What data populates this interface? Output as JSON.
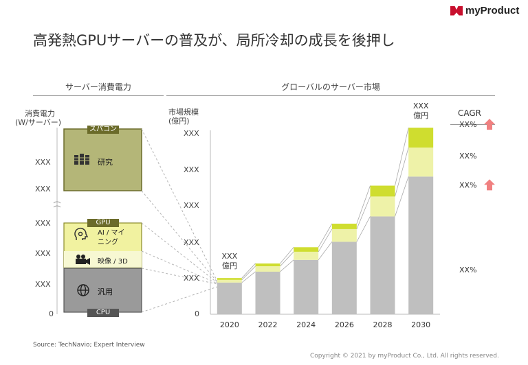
{
  "brand": {
    "name": "myProduct"
  },
  "title": "高発熱GPUサーバーの普及が、局所冷却の成長を後押し",
  "left_panel": {
    "title": "サーバー消費電力",
    "ylabel_line1": "消費電力",
    "ylabel_line2": "(W/サーバー)",
    "ticks": [
      "XXX",
      "XXX",
      "XXX",
      "XXX",
      "XXX",
      "0"
    ],
    "groups": [
      {
        "tag": "スパコン",
        "items": [
          {
            "icon": "server-rack-icon",
            "label": "研究"
          }
        ],
        "color": "#b4b678"
      },
      {
        "tag": "GPU",
        "items": [
          {
            "icon": "ai-head-icon",
            "label": "AI / マイ\nニング"
          },
          {
            "icon": "video-camera-icon",
            "label": "映像 / 3D"
          }
        ],
        "color": "#f1f2a0"
      },
      {
        "tag": "CPU",
        "items": [
          {
            "icon": "globe-icon",
            "label": "汎用"
          }
        ],
        "color": "#9a9a9a"
      }
    ]
  },
  "chart_data": {
    "type": "bar",
    "stacked": true,
    "title": "グローバルのサーバー市場",
    "ylabel": "市場規模\n(億円)",
    "categories": [
      "2020",
      "2022",
      "2024",
      "2026",
      "2028",
      "2030"
    ],
    "y_tick_labels": [
      "XXX",
      "XXX",
      "XXX",
      "XXX",
      "XXX",
      "0"
    ],
    "series": [
      {
        "values": [
          35,
          47,
          60,
          80,
          108,
          152
        ],
        "color": "#bfbfbf"
      },
      {
        "values": [
          3,
          6,
          9,
          14,
          22,
          32
        ],
        "color": "#eef2a8"
      },
      {
        "values": [
          2,
          3,
          5,
          6,
          12,
          22
        ],
        "color": "#cfdd2f"
      }
    ],
    "ylim": [
      0,
      200
    ],
    "annotations": [
      {
        "year": "2020",
        "line1": "XXX",
        "line2": "億円"
      },
      {
        "year": "2030",
        "line1": "XXX",
        "line2": "億円"
      }
    ],
    "cagr": {
      "title": "CAGR",
      "rows": [
        {
          "text": "XX%",
          "arrow": true
        },
        {
          "text": "XX%",
          "arrow": false
        },
        {
          "text": "XX%",
          "arrow": true
        },
        {
          "text": "XX%",
          "arrow": false
        }
      ],
      "arrow_color": "#f08080"
    },
    "grid": false
  },
  "source": "Source: TechNavio;  Expert Interview",
  "copyright": "Copyright © 2021 by myProduct Co., Ltd.  All rights reserved."
}
